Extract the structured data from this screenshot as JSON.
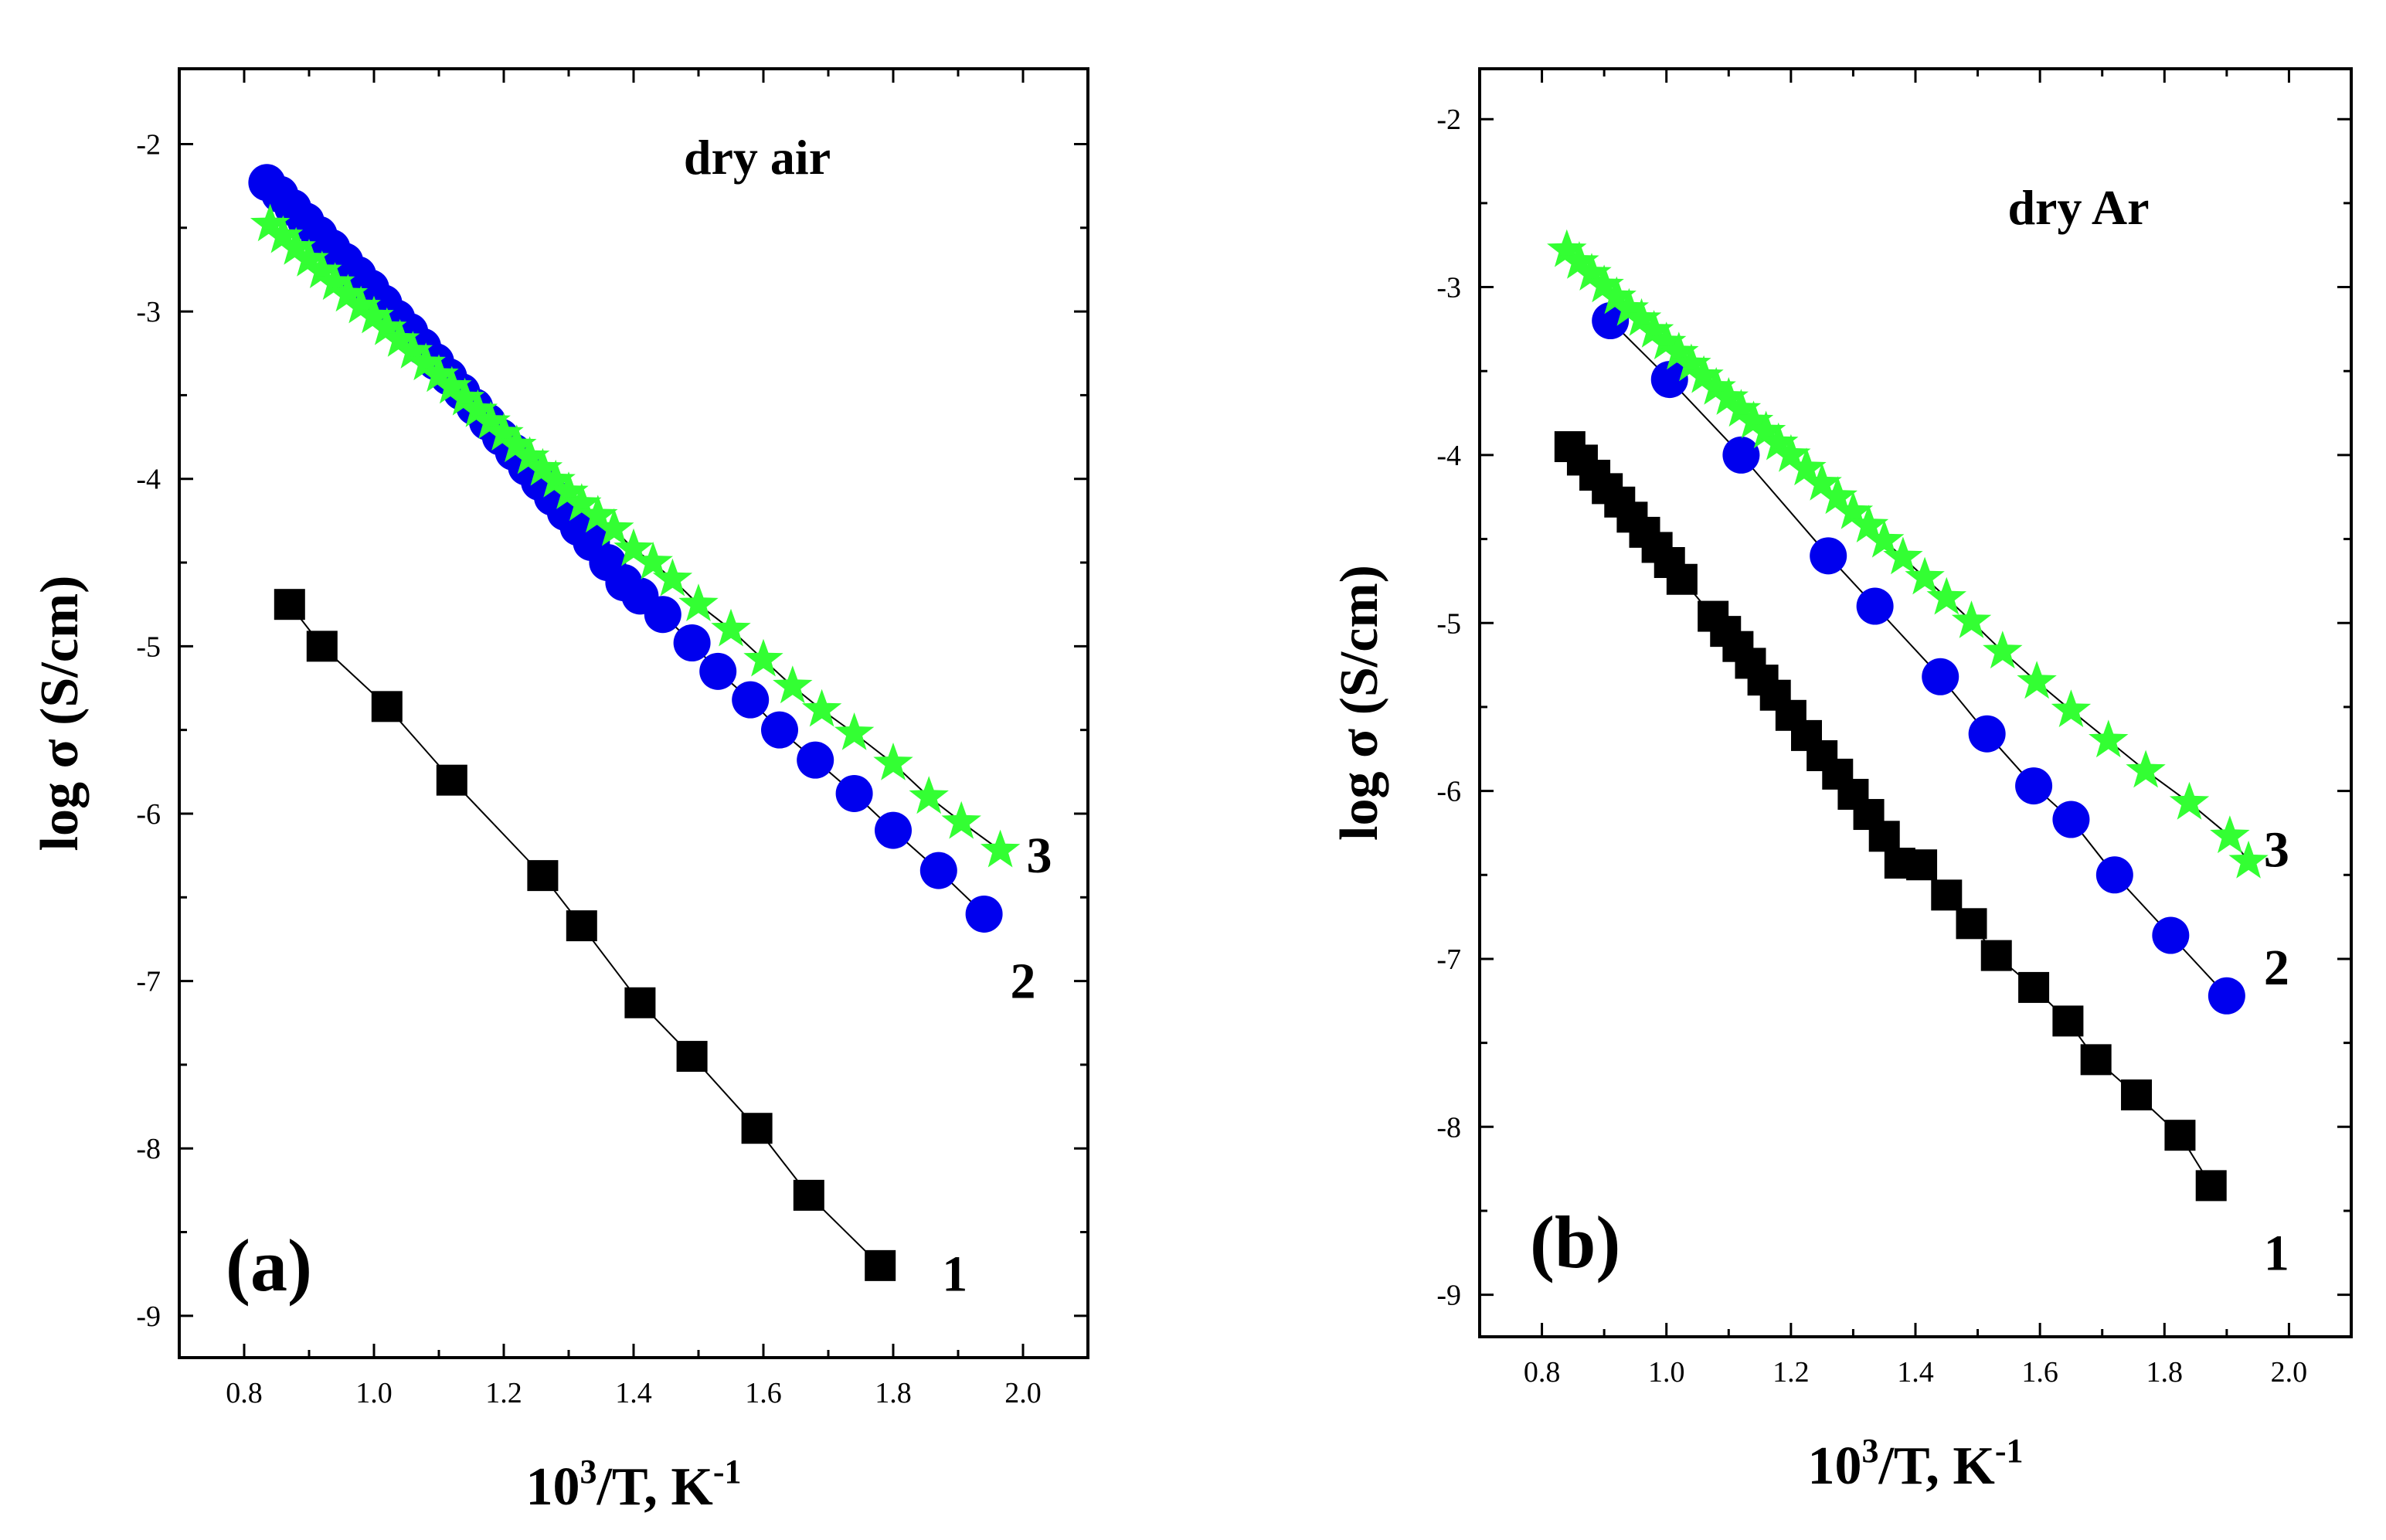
{
  "chart_data": [
    {
      "type": "scatter",
      "panel": "(a)",
      "title": "dry air",
      "xlabel": "10³/T, K⁻¹",
      "xlabel_base": "10",
      "xlabel_exp": "3",
      "xlabel_mid": "/T, K",
      "xlabel_exp2": "-1",
      "ylabel": "log σ (S/cm)",
      "xlim": [
        0.7,
        2.1
      ],
      "ylim": [
        -9.25,
        -1.55
      ],
      "xticks": [
        "0.8",
        "1.0",
        "1.2",
        "1.4",
        "1.6",
        "1.8",
        "2.0"
      ],
      "yticks": [
        "-2",
        "-3",
        "-4",
        "-5",
        "-6",
        "-7",
        "-8",
        "-9"
      ],
      "series": [
        {
          "name": "1",
          "marker": "square",
          "color": "#000000",
          "line": true,
          "label_at": [
            1.895,
            -8.75
          ],
          "x": [
            0.87,
            0.92,
            1.02,
            1.12,
            1.26,
            1.32,
            1.41,
            1.49,
            1.59,
            1.67,
            1.78
          ],
          "y": [
            -4.75,
            -5.0,
            -5.36,
            -5.8,
            -6.37,
            -6.67,
            -7.13,
            -7.45,
            -7.88,
            -8.28,
            -8.7
          ]
        },
        {
          "name": "2",
          "marker": "circle",
          "color": "#0000ee",
          "line": true,
          "label_at": [
            2.0,
            -7.0
          ],
          "x": [
            0.835,
            0.855,
            0.875,
            0.895,
            0.915,
            0.935,
            0.955,
            0.975,
            0.995,
            1.015,
            1.035,
            1.055,
            1.075,
            1.095,
            1.115,
            1.135,
            1.155,
            1.175,
            1.195,
            1.215,
            1.235,
            1.255,
            1.275,
            1.295,
            1.315,
            1.335,
            1.36,
            1.385,
            1.41,
            1.445,
            1.49,
            1.53,
            1.58,
            1.625,
            1.68,
            1.74,
            1.8,
            1.87,
            1.94
          ],
          "y": [
            -2.23,
            -2.3,
            -2.38,
            -2.46,
            -2.54,
            -2.62,
            -2.7,
            -2.78,
            -2.86,
            -2.95,
            -3.04,
            -3.12,
            -3.21,
            -3.3,
            -3.39,
            -3.48,
            -3.57,
            -3.66,
            -3.75,
            -3.84,
            -3.93,
            -4.02,
            -4.11,
            -4.2,
            -4.29,
            -4.38,
            -4.5,
            -4.62,
            -4.7,
            -4.81,
            -4.98,
            -5.15,
            -5.32,
            -5.5,
            -5.68,
            -5.88,
            -6.1,
            -6.34,
            -6.6
          ]
        },
        {
          "name": "3",
          "marker": "star",
          "color": "#33ff33",
          "line": true,
          "label_at": [
            2.025,
            -6.25
          ],
          "x": [
            0.84,
            0.86,
            0.88,
            0.9,
            0.92,
            0.94,
            0.96,
            0.98,
            1.0,
            1.02,
            1.04,
            1.06,
            1.08,
            1.1,
            1.12,
            1.14,
            1.16,
            1.18,
            1.2,
            1.22,
            1.24,
            1.26,
            1.28,
            1.3,
            1.32,
            1.345,
            1.37,
            1.4,
            1.43,
            1.46,
            1.5,
            1.55,
            1.6,
            1.645,
            1.69,
            1.74,
            1.8,
            1.855,
            1.905,
            1.965
          ],
          "y": [
            -2.48,
            -2.55,
            -2.62,
            -2.69,
            -2.76,
            -2.83,
            -2.9,
            -2.97,
            -3.03,
            -3.1,
            -3.17,
            -3.24,
            -3.31,
            -3.38,
            -3.45,
            -3.52,
            -3.59,
            -3.66,
            -3.73,
            -3.8,
            -3.87,
            -3.94,
            -4.01,
            -4.08,
            -4.15,
            -4.22,
            -4.3,
            -4.42,
            -4.5,
            -4.6,
            -4.75,
            -4.9,
            -5.08,
            -5.24,
            -5.38,
            -5.52,
            -5.7,
            -5.9,
            -6.05,
            -6.22
          ]
        }
      ]
    },
    {
      "type": "scatter",
      "panel": "(b)",
      "title": "dry Ar",
      "xlabel": "10³/T, K⁻¹",
      "xlabel_base": "10",
      "xlabel_exp": "3",
      "xlabel_mid": "/T, K",
      "xlabel_exp2": "-1",
      "ylabel": "log σ (S/cm)",
      "xlim": [
        0.7,
        2.1
      ],
      "ylim": [
        -9.25,
        -1.7
      ],
      "xticks": [
        "0.8",
        "1.0",
        "1.2",
        "1.4",
        "1.6",
        "1.8",
        "2.0"
      ],
      "yticks": [
        "-2",
        "-3",
        "-4",
        "-5",
        "-6",
        "-7",
        "-8",
        "-9"
      ],
      "series": [
        {
          "name": "1",
          "marker": "square",
          "color": "#000000",
          "line": true,
          "label_at": [
            1.98,
            -8.75
          ],
          "x": [
            0.845,
            0.865,
            0.885,
            0.905,
            0.925,
            0.945,
            0.965,
            0.985,
            1.005,
            1.025,
            1.075,
            1.095,
            1.115,
            1.135,
            1.155,
            1.175,
            1.2,
            1.225,
            1.25,
            1.275,
            1.3,
            1.325,
            1.35,
            1.375,
            1.41,
            1.45,
            1.49,
            1.53,
            1.59,
            1.645,
            1.69,
            1.755,
            1.825,
            1.875
          ],
          "y": [
            -3.95,
            -4.03,
            -4.12,
            -4.2,
            -4.28,
            -4.37,
            -4.46,
            -4.55,
            -4.64,
            -4.74,
            -4.96,
            -5.05,
            -5.14,
            -5.24,
            -5.34,
            -5.43,
            -5.55,
            -5.67,
            -5.79,
            -5.9,
            -6.02,
            -6.14,
            -6.27,
            -6.43,
            -6.44,
            -6.62,
            -6.79,
            -6.98,
            -7.17,
            -7.37,
            -7.6,
            -7.81,
            -8.05,
            -8.35
          ]
        },
        {
          "name": "2",
          "marker": "circle",
          "color": "#0000ee",
          "line": true,
          "label_at": [
            1.98,
            -7.05
          ],
          "x": [
            0.91,
            1.005,
            1.12,
            1.26,
            1.335,
            1.44,
            1.515,
            1.59,
            1.65,
            1.72,
            1.81,
            1.9
          ],
          "y": [
            -3.2,
            -3.55,
            -4.0,
            -4.6,
            -4.9,
            -5.32,
            -5.66,
            -5.97,
            -6.17,
            -6.5,
            -6.86,
            -7.22
          ]
        },
        {
          "name": "3",
          "marker": "star",
          "color": "#33ff33",
          "line": true,
          "label_at": [
            1.98,
            -6.35
          ],
          "x": [
            0.84,
            0.86,
            0.88,
            0.9,
            0.92,
            0.94,
            0.96,
            0.98,
            1.0,
            1.02,
            1.04,
            1.06,
            1.08,
            1.1,
            1.12,
            1.14,
            1.16,
            1.18,
            1.2,
            1.225,
            1.25,
            1.275,
            1.3,
            1.325,
            1.35,
            1.38,
            1.415,
            1.45,
            1.49,
            1.54,
            1.595,
            1.65,
            1.71,
            1.77,
            1.84,
            1.905,
            1.935
          ],
          "y": [
            -2.78,
            -2.85,
            -2.92,
            -2.99,
            -3.06,
            -3.13,
            -3.19,
            -3.26,
            -3.33,
            -3.39,
            -3.46,
            -3.53,
            -3.6,
            -3.66,
            -3.73,
            -3.8,
            -3.86,
            -3.93,
            -4.0,
            -4.08,
            -4.17,
            -4.25,
            -4.34,
            -4.42,
            -4.51,
            -4.61,
            -4.73,
            -4.85,
            -4.99,
            -5.17,
            -5.35,
            -5.52,
            -5.7,
            -5.88,
            -6.07,
            -6.27,
            -6.42
          ]
        }
      ]
    }
  ]
}
